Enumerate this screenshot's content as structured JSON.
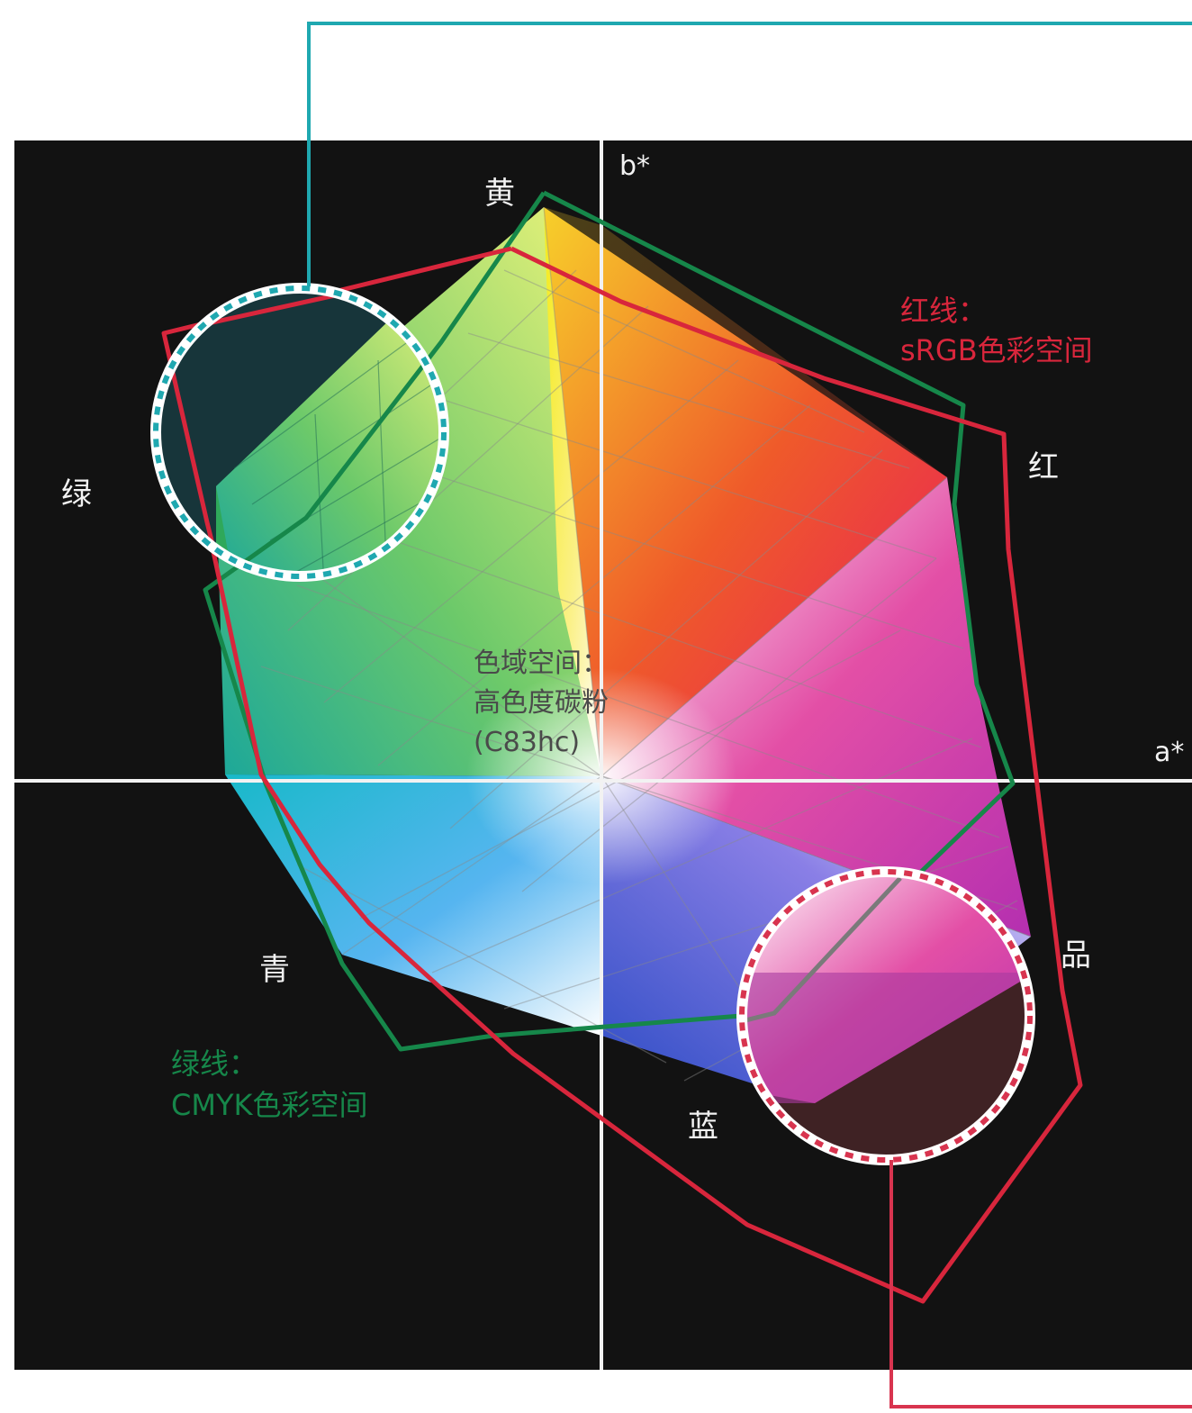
{
  "axes": {
    "b_label": "b*",
    "a_label": "a*"
  },
  "corners": {
    "yellow": "黄",
    "red": "红",
    "magenta": "品",
    "blue": "蓝",
    "cyan": "青",
    "green": "绿"
  },
  "center_label": {
    "line1": "色域空间：",
    "line2": "高色度碳粉",
    "line3": "(C83hc)"
  },
  "legend_red": {
    "line1": "红线：",
    "line2": "sRGB色彩空间"
  },
  "legend_green": {
    "line1": "绿线：",
    "line2": "CMYK色彩空间"
  },
  "colors": {
    "background": "#121212",
    "srgb_line": "#d8263c",
    "cmyk_line": "#16874a",
    "callout_top": "#1fa8b0",
    "callout_bottom": "#d8344f",
    "axis": "#f2f2f2"
  }
}
